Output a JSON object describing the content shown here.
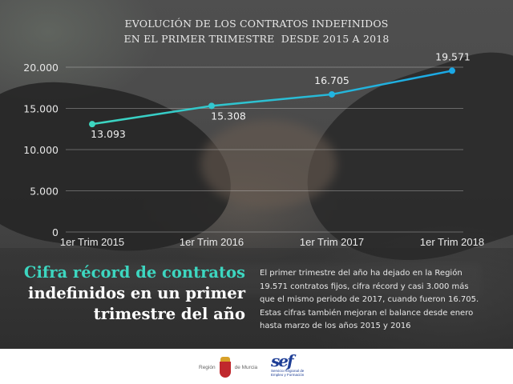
{
  "title": {
    "line1": "EVOLUCIÓN DE LOS CONTRATOS INDEFINIDOS",
    "line2": "EN EL PRIMER TRIMESTRE  DESDE 2015 A 2018"
  },
  "chart_data": {
    "type": "line",
    "title": "EVOLUCIÓN DE LOS CONTRATOS INDEFINIDOS EN EL PRIMER TRIMESTRE DESDE 2015 A 2018",
    "categories": [
      "1er Trim 2015",
      "1er Trim 2016",
      "1er Trim 2017",
      "1er Trim 2018"
    ],
    "series": [
      {
        "name": "Contratos indefinidos",
        "values": [
          13093,
          15308,
          16705,
          19571
        ]
      }
    ],
    "data_labels": [
      "13.093",
      "15.308",
      "16.705",
      "19.571"
    ],
    "y_ticks": [
      0,
      5000,
      10000,
      15000,
      20000
    ],
    "y_tick_labels": [
      "0",
      "5.000",
      "10.000",
      "15.000",
      "20.000"
    ],
    "ylim": [
      0,
      20000
    ],
    "xlabel": "",
    "ylabel": "",
    "grid": true,
    "legend": "none",
    "line_color_start": "#3dd6c0",
    "line_color_end": "#1aa8e6"
  },
  "headline": {
    "line1": "Cifra récord de contratos",
    "line2": "indefinidos en un primer",
    "line3": "trimestre del año"
  },
  "body": {
    "line1": "El primer trimestre del año ha dejado en la Región",
    "line2": "19.571 contratos fijos, cifra récord y casi 3.000 más",
    "line3": "que el mismo periodo de 2017, cuando fueron 16.705.",
    "line4": "Estas cifras también mejoran el balance desde enero",
    "line5": "hasta marzo de los años 2015 y 2016"
  },
  "footer": {
    "murcia_left": "Región",
    "murcia_right": "de Murcia",
    "sef_mark": "sef",
    "sef_line1": "Servicio Regional de",
    "sef_line2": "Empleo y Formación"
  },
  "colors": {
    "accent_teal": "#3dd6c0",
    "accent_blue": "#1aa8e6",
    "sef_blue": "#1e3e96",
    "murcia_red": "#c0282d"
  }
}
